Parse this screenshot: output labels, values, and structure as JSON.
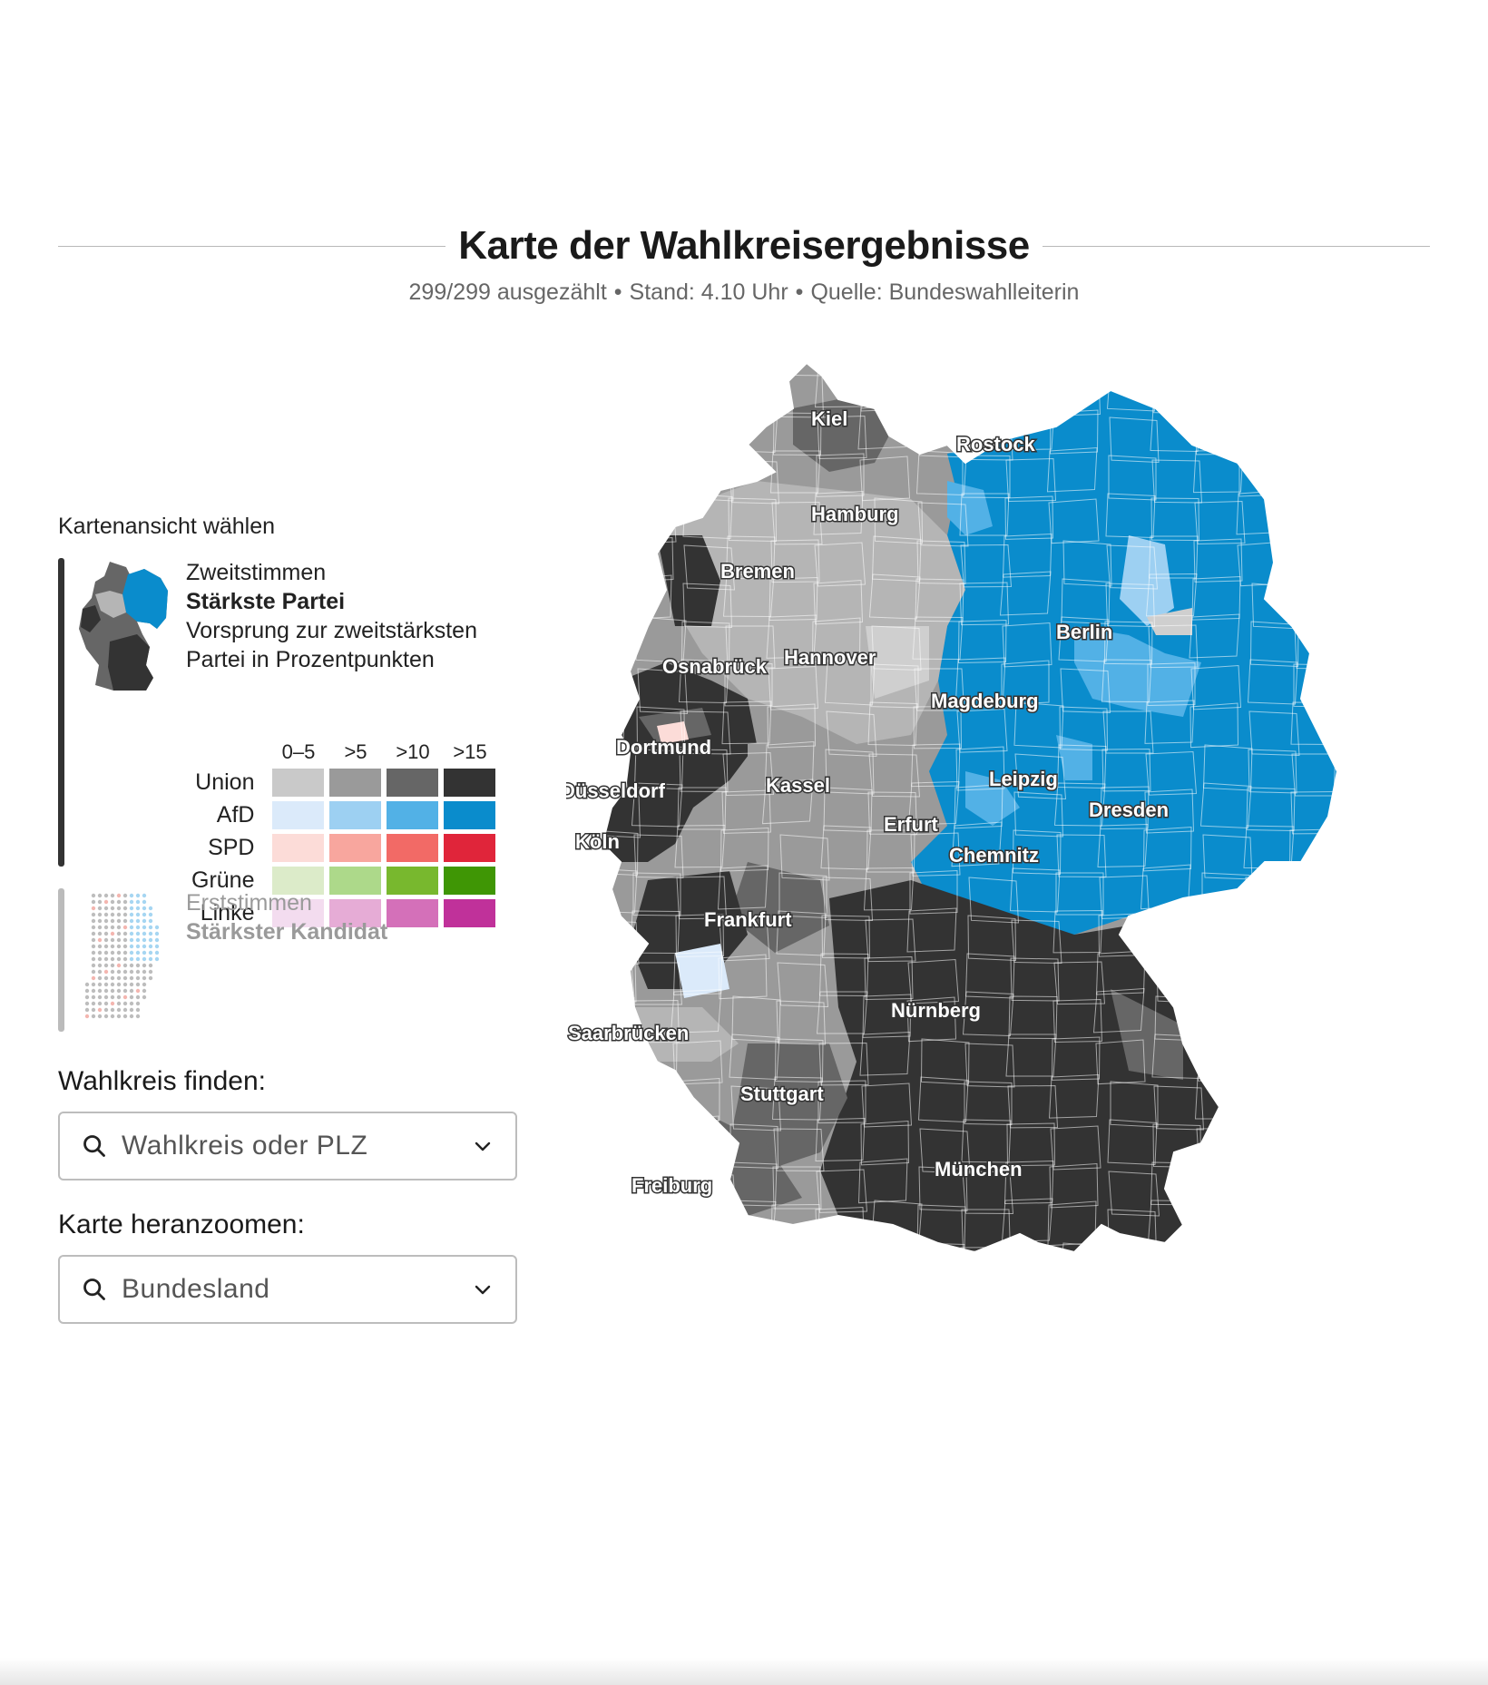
{
  "header": {
    "title": "Karte der Wahlkreisergebnisse",
    "subtitle_count": "299/299 ausgezählt",
    "subtitle_time": "Stand: 4.10 Uhr",
    "subtitle_source": "Quelle: Bundeswahlleiterin"
  },
  "panel": {
    "view_heading": "Kartenansicht wählen",
    "view_primary": {
      "line1": "Zweitstimmen",
      "line2": "Stärkste Partei",
      "line3": "Vorsprung zur zweitstärksten",
      "line4": "Partei in Prozentpunkten"
    },
    "view_secondary": {
      "line1": "Erststimmen",
      "line2": "Stärkster Kandidat"
    },
    "legend": {
      "columns": [
        "0–5",
        ">5",
        ">10",
        ">15"
      ],
      "rows": [
        {
          "label": "Union",
          "colors": [
            "#c9c9c9",
            "#9a9a9a",
            "#666666",
            "#333333"
          ]
        },
        {
          "label": "AfD",
          "colors": [
            "#dbeafa",
            "#9dd0f2",
            "#52b1e6",
            "#0a8ccc"
          ]
        },
        {
          "label": "SPD",
          "colors": [
            "#fcdcd8",
            "#f8a69e",
            "#f26a66",
            "#e0253a"
          ]
        },
        {
          "label": "Grüne",
          "colors": [
            "#dcebc9",
            "#add98a",
            "#78b82e",
            "#3f9605"
          ]
        },
        {
          "label": "Linke",
          "colors": [
            "#f3dcef",
            "#e6acd6",
            "#d470b9",
            "#c0319a"
          ]
        }
      ]
    },
    "find": {
      "label": "Wahlkreis finden:",
      "placeholder": "Wahlkreis oder PLZ"
    },
    "zoom": {
      "label": "Karte heranzoomen:",
      "value": "Bundesland"
    }
  },
  "map": {
    "cities": [
      "Kiel",
      "Rostock",
      "Hamburg",
      "Bremen",
      "Berlin",
      "Osnabrück",
      "Hannover",
      "Magdeburg",
      "Dortmund",
      "Kassel",
      "Leipzig",
      "Düsseldorf",
      "Dresden",
      "Erfurt",
      "Köln",
      "Chemnitz",
      "Frankfurt",
      "Nürnberg",
      "Saarbrücken",
      "Stuttgart",
      "München",
      "Freiburg"
    ]
  }
}
